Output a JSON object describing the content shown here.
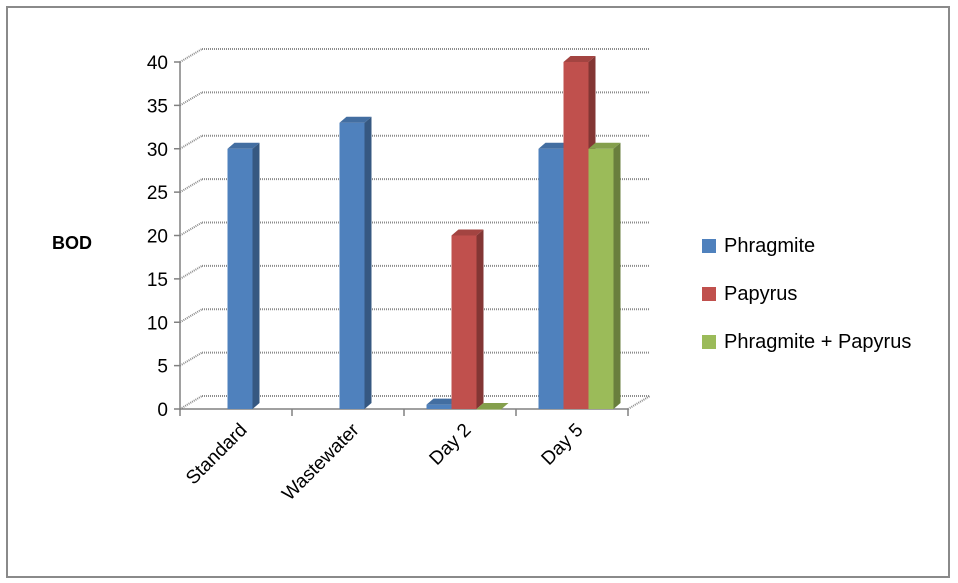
{
  "chart_data": {
    "type": "bar",
    "title": "",
    "xlabel": "",
    "ylabel": "BOD",
    "ylim": [
      0,
      40
    ],
    "yticks": [
      0,
      5,
      10,
      15,
      20,
      25,
      30,
      35,
      40
    ],
    "categories": [
      "Standard",
      "Wastewater",
      "Day 2",
      "Day 5"
    ],
    "series": [
      {
        "name": "Phragmite",
        "color": "#4F81BD",
        "values": [
          30,
          33,
          0.5,
          30
        ]
      },
      {
        "name": "Papyrus",
        "color": "#C0504D",
        "values": [
          null,
          null,
          20,
          40
        ]
      },
      {
        "name": "Phragmite + Papyrus",
        "color": "#9BBB59",
        "values": [
          null,
          null,
          0,
          30
        ]
      }
    ],
    "grid": true,
    "style": "3d-clustered-column",
    "legend_position": "right"
  }
}
